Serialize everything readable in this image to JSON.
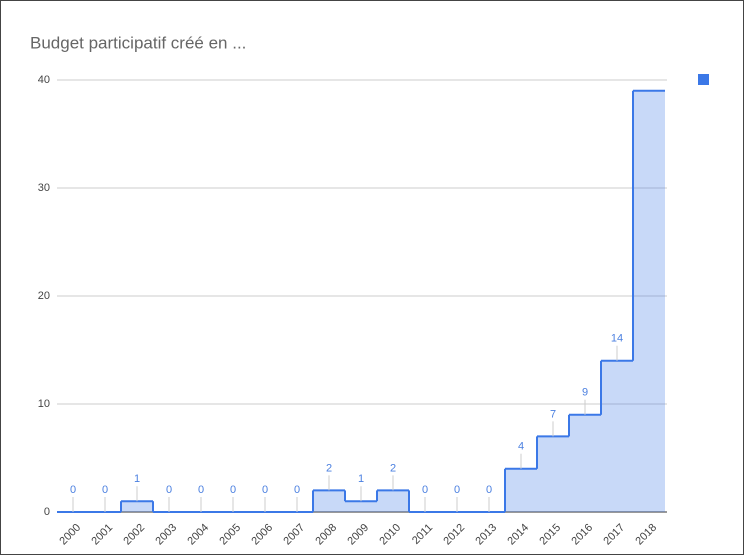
{
  "chart_data": {
    "type": "stepped-area",
    "title": "Budget participatif créé en ...",
    "categories": [
      "2000",
      "2001",
      "2002",
      "2003",
      "2004",
      "2005",
      "2006",
      "2007",
      "2008",
      "2009",
      "2010",
      "2011",
      "2012",
      "2013",
      "2014",
      "2015",
      "2016",
      "2017",
      "2018"
    ],
    "series": [
      {
        "color": "#3b78e7",
        "values": [
          0,
          0,
          1,
          0,
          0,
          0,
          0,
          0,
          2,
          1,
          2,
          0,
          0,
          0,
          4,
          7,
          9,
          14,
          39
        ],
        "value_labels": [
          "0",
          "0",
          "1",
          "0",
          "0",
          "0",
          "0",
          "0",
          "2",
          "1",
          "2",
          "0",
          "0",
          "0",
          "4",
          "7",
          "9",
          "14",
          null
        ]
      }
    ],
    "ylim": [
      0,
      40
    ],
    "yticks": [
      0,
      10,
      20,
      30,
      40
    ],
    "grid": true,
    "legend": "top-right"
  }
}
